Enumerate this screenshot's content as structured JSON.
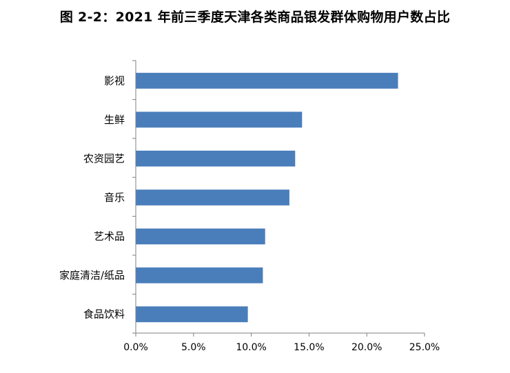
{
  "chart_data": {
    "type": "bar",
    "orientation": "horizontal",
    "title": "图 2-2：2021 年前三季度天津各类商品银发群体购物用户数占比",
    "categories": [
      "影视",
      "生鲜",
      "农资园艺",
      "音乐",
      "艺术品",
      "家庭清洁/纸品",
      "食品饮料"
    ],
    "values": [
      22.7,
      14.4,
      13.8,
      13.3,
      11.2,
      11.0,
      9.7
    ],
    "unit": "%",
    "xlim": [
      0,
      25
    ],
    "xticks": [
      0,
      5,
      10,
      15,
      20,
      25
    ],
    "xtick_labels": [
      "0.0%",
      "5.0%",
      "10.0%",
      "15.0%",
      "20.0%",
      "25.0%"
    ],
    "xlabel": "",
    "ylabel": "",
    "grid": false,
    "legend": false,
    "bar_color": "#4a7ebb"
  }
}
